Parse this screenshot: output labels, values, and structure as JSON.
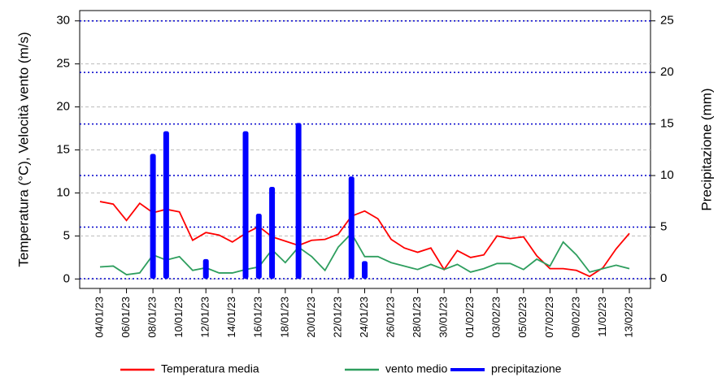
{
  "chart_data": {
    "type": "line",
    "y_label": "Temperatura (°C), Velocità vento (m/s)",
    "y2_label": "Precipitazione (mm)",
    "categories": [
      "04/01/23",
      null,
      "06/01/23",
      null,
      "08/01/23",
      null,
      "10/01/23",
      null,
      "12/01/23",
      null,
      "14/01/23",
      null,
      "16/01/23",
      null,
      "18/01/23",
      null,
      "20/01/23",
      null,
      "22/01/23",
      null,
      "24/01/23",
      null,
      "26/01/23",
      null,
      "28/01/23",
      null,
      "30/01/23",
      null,
      "01/02/23",
      null,
      "03/02/23",
      null,
      "05/02/23",
      null,
      "07/02/23",
      null,
      "09/02/23",
      null,
      "11/02/23",
      null,
      "13/02/23"
    ],
    "series": [
      {
        "name": "Temperatura media",
        "color": "#ff0000",
        "values": [
          9.0,
          8.7,
          6.8,
          8.8,
          7.7,
          8.1,
          7.8,
          4.5,
          5.4,
          5.1,
          4.3,
          5.3,
          6.1,
          4.9,
          4.4,
          3.9,
          4.5,
          4.6,
          5.2,
          7.3,
          7.9,
          7.0,
          4.6,
          3.6,
          3.1,
          3.6,
          1.1,
          3.3,
          2.5,
          2.8,
          5.0,
          4.7,
          4.9,
          2.7,
          1.2,
          1.2,
          1.0,
          0.3,
          1.3,
          3.5,
          5.3
        ]
      },
      {
        "name": "vento medio",
        "color": "#2e9e5e",
        "values": [
          1.4,
          1.5,
          0.5,
          0.7,
          2.8,
          2.2,
          2.6,
          1.0,
          1.3,
          0.7,
          0.7,
          1.1,
          1.4,
          3.4,
          1.9,
          3.7,
          2.6,
          1.0,
          3.7,
          5.3,
          2.6,
          2.6,
          1.9,
          1.5,
          1.1,
          1.7,
          1.1,
          1.7,
          0.8,
          1.2,
          1.8,
          1.8,
          1.1,
          2.3,
          1.5,
          4.3,
          2.8,
          0.8,
          1.2,
          1.6,
          1.2
        ]
      },
      {
        "name": "precipitazione",
        "color": "#0000ff",
        "type": "bar",
        "axis": "y2",
        "values": [
          0,
          0,
          0,
          0,
          12.1,
          14.3,
          0,
          0,
          1.9,
          0,
          0,
          14.3,
          6.3,
          8.9,
          0,
          15.1,
          0,
          0,
          0,
          9.9,
          1.7,
          0,
          0,
          0,
          0,
          0,
          0,
          0,
          0,
          0,
          0,
          0,
          0,
          0,
          0,
          0,
          0,
          0,
          0,
          0,
          0
        ]
      }
    ],
    "ylim": [
      -1.1,
      31.2
    ],
    "yticks": [
      0,
      5,
      10,
      15,
      20,
      25,
      30
    ],
    "y2lim": [
      -0.95,
      26.0
    ],
    "y2ticks": [
      0,
      5,
      10,
      15,
      20,
      25
    ],
    "grid": true,
    "legend": "bottom"
  }
}
